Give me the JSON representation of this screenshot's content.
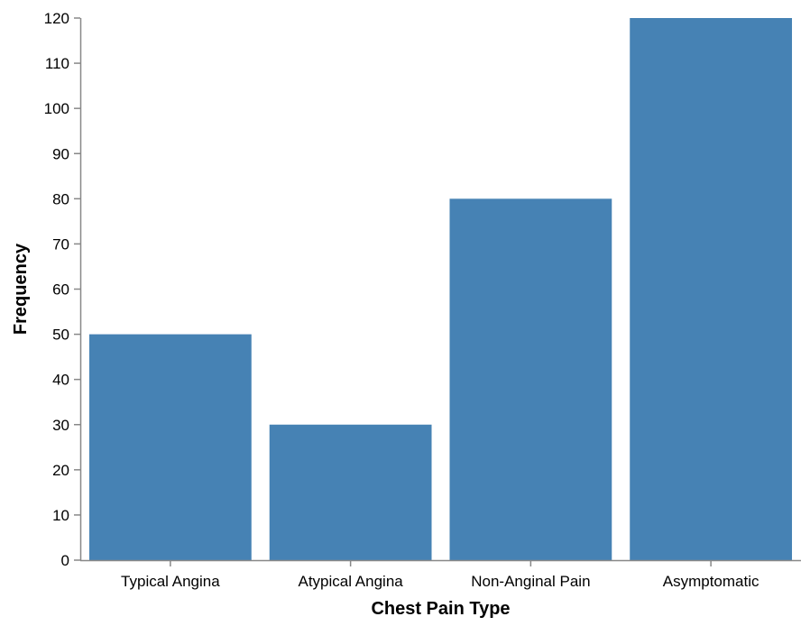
{
  "chart_data": {
    "type": "bar",
    "categories": [
      "Typical Angina",
      "Atypical Angina",
      "Non-Anginal Pain",
      "Asymptomatic"
    ],
    "values": [
      50,
      30,
      80,
      120
    ],
    "title": "",
    "xlabel": "Chest Pain Type",
    "ylabel": "Frequency",
    "ylim": [
      0,
      120
    ],
    "yticks": [
      0,
      10,
      20,
      30,
      40,
      50,
      60,
      70,
      80,
      90,
      100,
      110,
      120
    ],
    "grid": false,
    "legend": "none",
    "colors": {
      "bar": "#4682b4",
      "axis": "#888888",
      "text": "#000000"
    }
  }
}
